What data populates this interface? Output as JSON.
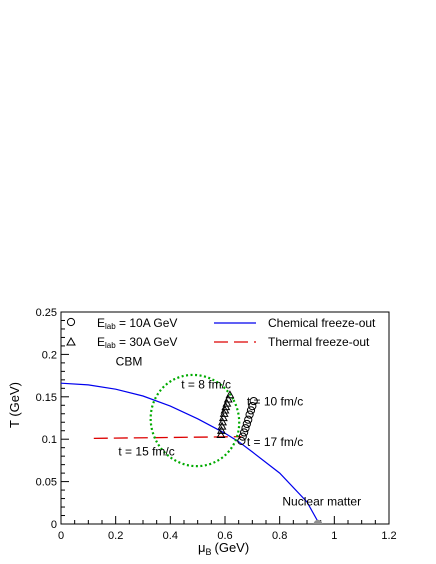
{
  "chart_data": {
    "type": "scatter",
    "xlabel_main": "μ",
    "xlabel_sub": "B",
    "xlabel_unit": "(GeV)",
    "ylabel": "T (GeV)",
    "xlim": [
      0,
      1.2
    ],
    "ylim": [
      0,
      0.25
    ],
    "xticks": [
      0,
      0.2,
      0.4,
      0.6,
      0.8,
      1,
      1.2
    ],
    "xtick_labels": [
      "0",
      "0.2",
      "0.4",
      "0.6",
      "0.8",
      "1",
      "1.2"
    ],
    "yticks": [
      0,
      0.05,
      0.1,
      0.15,
      0.2,
      0.25
    ],
    "ytick_labels": [
      "0",
      "0.05",
      "0.1",
      "0.15",
      "0.2",
      "0.25"
    ],
    "grid": false,
    "legend": {
      "placement": "top",
      "entries": [
        {
          "symbol": "circle",
          "prefix": "E",
          "sub": "lab",
          "suffix": " = 10A GeV"
        },
        {
          "symbol": "triangle",
          "prefix": "E",
          "sub": "lab",
          "suffix": " = 30A GeV"
        },
        {
          "symbol": "blue-line",
          "label": "Chemical freeze-out",
          "color": "#0000ee"
        },
        {
          "symbol": "red-dash",
          "label": "Thermal freeze-out",
          "color": "#dd0000"
        }
      ]
    },
    "series": [
      {
        "name": "E_lab = 10A GeV",
        "marker": "circle",
        "x": [
          0.66,
          0.665,
          0.67,
          0.675,
          0.68,
          0.685,
          0.69,
          0.695,
          0.7,
          0.705
        ],
        "y": [
          0.098,
          0.103,
          0.108,
          0.113,
          0.118,
          0.123,
          0.129,
          0.134,
          0.139,
          0.145
        ]
      },
      {
        "name": "E_lab = 30A GeV",
        "marker": "triangle",
        "x": [
          0.585,
          0.587,
          0.589,
          0.591,
          0.594,
          0.597,
          0.6,
          0.603,
          0.607,
          0.612,
          0.618
        ],
        "y": [
          0.105,
          0.11,
          0.115,
          0.12,
          0.125,
          0.13,
          0.134,
          0.138,
          0.142,
          0.147,
          0.152
        ]
      },
      {
        "name": "Chemical freeze-out",
        "style": "line",
        "color": "#0000ee",
        "x": [
          0,
          0.1,
          0.2,
          0.3,
          0.4,
          0.5,
          0.6,
          0.65,
          0.7,
          0.8,
          0.9,
          0.945
        ],
        "y": [
          0.166,
          0.164,
          0.159,
          0.151,
          0.139,
          0.124,
          0.107,
          0.097,
          0.085,
          0.06,
          0.026,
          0.0
        ]
      },
      {
        "name": "Thermal freeze-out",
        "style": "dashed",
        "color": "#dd0000",
        "x": [
          0.12,
          0.66
        ],
        "y": [
          0.101,
          0.103
        ]
      },
      {
        "name": "Nuclear matter",
        "marker": "filled-circle",
        "color": "#909090",
        "x": [
          0.94
        ],
        "y": [
          0.0
        ]
      }
    ],
    "ellipse": {
      "color": "#00aa00",
      "style": "dotted",
      "center": [
        0.49,
        0.122
      ],
      "radius_x": 0.16,
      "radius_y": 0.034,
      "rotation_deg": -28
    },
    "annotations": [
      {
        "text": "CBM",
        "x": 0.2,
        "y": 0.187
      },
      {
        "text": "t = 8 fm/c",
        "x": 0.44,
        "y": 0.16
      },
      {
        "text": "t = 10 fm/c",
        "x": 0.68,
        "y": 0.14
      },
      {
        "text": "t = 17 fm/c",
        "x": 0.68,
        "y": 0.092
      },
      {
        "text": "t = 15 fm/c",
        "x": 0.21,
        "y": 0.081
      },
      {
        "text": "Nuclear matter",
        "x": 0.81,
        "y": 0.022
      }
    ]
  }
}
